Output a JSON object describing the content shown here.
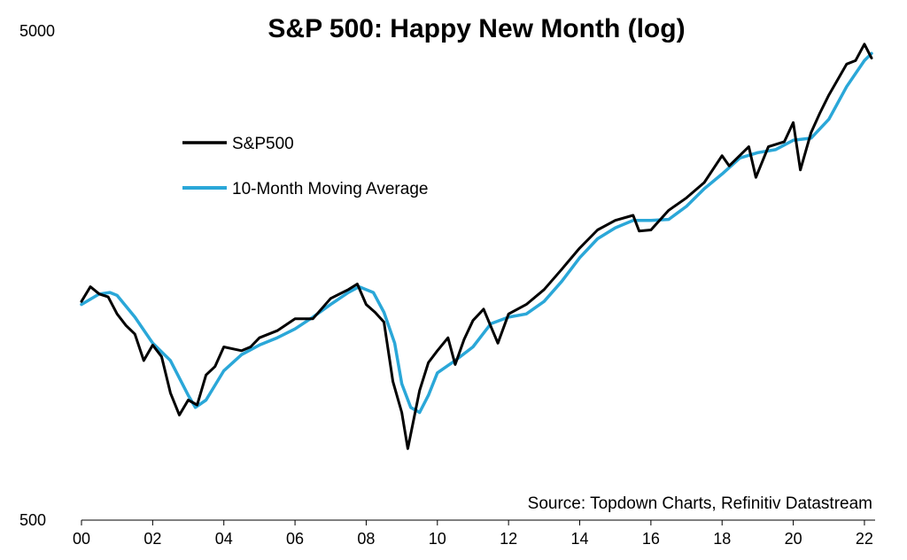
{
  "chart_data": {
    "type": "line",
    "title": "S&P 500: Happy New Month (log)",
    "source": "Source: Topdown Charts, Refinitiv Datastream",
    "y_scale": "log",
    "ylim": [
      500,
      5000
    ],
    "y_ticks": [
      "500",
      "5000"
    ],
    "xlim": [
      2000,
      2022.3
    ],
    "x_ticks": [
      "00",
      "02",
      "04",
      "06",
      "08",
      "10",
      "12",
      "14",
      "16",
      "18",
      "20",
      "22"
    ],
    "colors": {
      "sp500": "#000000",
      "ma10": "#2aa7d8"
    },
    "legend_position": "upper-left",
    "series": [
      {
        "name": "S&P500",
        "key": "sp500",
        "x": [
          2000.0,
          2000.25,
          2000.5,
          2000.75,
          2001.0,
          2001.25,
          2001.5,
          2001.75,
          2002.0,
          2002.25,
          2002.5,
          2002.75,
          2003.0,
          2003.25,
          2003.5,
          2003.75,
          2004.0,
          2004.25,
          2004.5,
          2004.75,
          2005.0,
          2005.5,
          2006.0,
          2006.5,
          2007.0,
          2007.5,
          2007.75,
          2008.0,
          2008.25,
          2008.5,
          2008.75,
          2009.0,
          2009.17,
          2009.5,
          2009.75,
          2010.0,
          2010.3,
          2010.5,
          2010.75,
          2011.0,
          2011.3,
          2011.7,
          2012.0,
          2012.5,
          2013.0,
          2013.5,
          2014.0,
          2014.5,
          2015.0,
          2015.5,
          2015.67,
          2016.0,
          2016.5,
          2017.0,
          2017.5,
          2018.0,
          2018.2,
          2018.75,
          2018.95,
          2019.3,
          2019.75,
          2020.0,
          2020.2,
          2020.5,
          2020.75,
          2021.0,
          2021.5,
          2021.75,
          2022.0,
          2022.2
        ],
        "y": [
          1400,
          1500,
          1450,
          1430,
          1320,
          1250,
          1200,
          1060,
          1140,
          1080,
          910,
          820,
          880,
          860,
          990,
          1030,
          1130,
          1120,
          1110,
          1130,
          1180,
          1220,
          1290,
          1290,
          1420,
          1480,
          1520,
          1380,
          1330,
          1270,
          960,
          830,
          700,
          920,
          1050,
          1110,
          1180,
          1040,
          1170,
          1280,
          1350,
          1150,
          1320,
          1380,
          1480,
          1630,
          1800,
          1960,
          2050,
          2100,
          1950,
          1960,
          2150,
          2280,
          2450,
          2780,
          2650,
          2900,
          2510,
          2900,
          2970,
          3250,
          2600,
          3100,
          3400,
          3700,
          4280,
          4350,
          4700,
          4400
        ]
      },
      {
        "name": "10-Month Moving Average",
        "key": "ma10",
        "x": [
          2000.0,
          2000.5,
          2000.8,
          2001.0,
          2001.5,
          2002.0,
          2002.5,
          2003.0,
          2003.2,
          2003.5,
          2004.0,
          2004.5,
          2005.0,
          2005.5,
          2006.0,
          2006.5,
          2007.0,
          2007.5,
          2007.8,
          2008.2,
          2008.5,
          2008.8,
          2009.0,
          2009.25,
          2009.5,
          2009.75,
          2010.0,
          2010.5,
          2011.0,
          2011.5,
          2012.0,
          2012.5,
          2013.0,
          2013.5,
          2014.0,
          2014.5,
          2015.0,
          2015.5,
          2016.0,
          2016.5,
          2017.0,
          2017.5,
          2018.0,
          2018.5,
          2019.0,
          2019.5,
          2020.0,
          2020.5,
          2021.0,
          2021.5,
          2022.0,
          2022.2
        ],
        "y": [
          1380,
          1450,
          1460,
          1440,
          1300,
          1150,
          1060,
          900,
          850,
          880,
          1010,
          1090,
          1140,
          1180,
          1230,
          1300,
          1380,
          1460,
          1500,
          1460,
          1330,
          1150,
          950,
          850,
          830,
          900,
          1000,
          1060,
          1130,
          1260,
          1300,
          1320,
          1400,
          1540,
          1720,
          1880,
          1980,
          2050,
          2050,
          2060,
          2190,
          2380,
          2550,
          2750,
          2820,
          2860,
          2990,
          3020,
          3300,
          3850,
          4350,
          4500
        ]
      }
    ]
  }
}
